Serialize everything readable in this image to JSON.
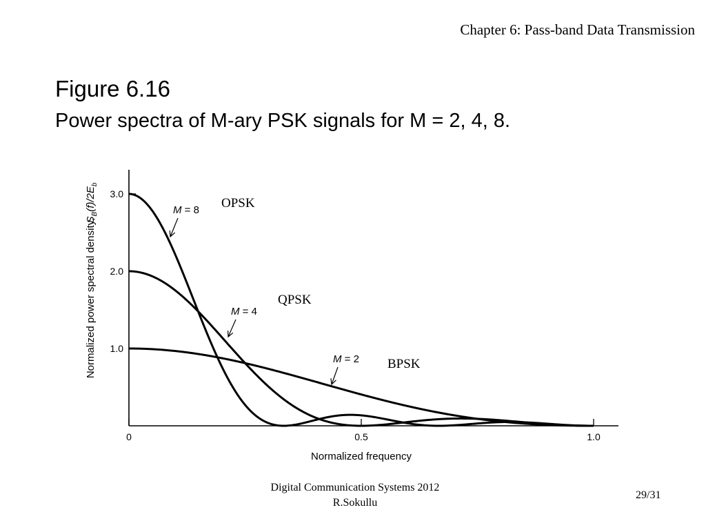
{
  "header": {
    "chapter": "Chapter 6: Pass-band Data Transmission"
  },
  "figure": {
    "title": "Figure 6.16",
    "caption": "Power spectra of M-ary PSK signals for M = 2, 4, 8."
  },
  "chart_data": {
    "type": "line",
    "title": "",
    "xlabel": "Normalized frequency",
    "ylabel": "Normalized power spectral density,",
    "ylabel_symbol": "S_B(f)/2E_b",
    "xlim": [
      0,
      1.0
    ],
    "ylim": [
      0,
      3.3
    ],
    "x_ticks": [
      "0",
      "0.5",
      "1.0"
    ],
    "y_ticks": [
      "1.0",
      "2.0",
      "3.0"
    ],
    "grid": false,
    "series": [
      {
        "name": "M = 2",
        "label": "BPSK",
        "M": 2,
        "peak": 1.0
      },
      {
        "name": "M = 4",
        "label": "QPSK",
        "M": 4,
        "peak": 2.0
      },
      {
        "name": "M = 8",
        "label": "OPSK",
        "M": 8,
        "peak": 3.0
      }
    ],
    "annotations": [
      "M = 8",
      "M = 4",
      "M = 2",
      "OPSK",
      "QPSK",
      "BPSK"
    ]
  },
  "footer": {
    "line1": "Digital Communication Systems 2012",
    "line2": "R.Sokullu",
    "page": "29/31"
  }
}
